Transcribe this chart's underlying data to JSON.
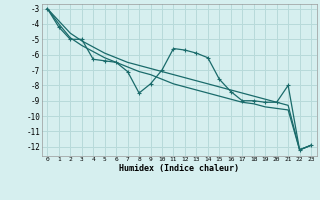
{
  "xlabel": "Humidex (Indice chaleur)",
  "ylabel": "",
  "background_color": "#d6efef",
  "grid_color": "#b8dada",
  "line_color": "#1a6b6b",
  "xlim": [
    -0.5,
    23.5
  ],
  "ylim": [
    -12.6,
    -2.7
  ],
  "xticks": [
    0,
    1,
    2,
    3,
    4,
    5,
    6,
    7,
    8,
    9,
    10,
    11,
    12,
    13,
    14,
    15,
    16,
    17,
    18,
    19,
    20,
    21,
    22,
    23
  ],
  "yticks": [
    -3,
    -4,
    -5,
    -6,
    -7,
    -8,
    -9,
    -10,
    -11,
    -12
  ],
  "series_main": [
    [
      0,
      -3.0
    ],
    [
      1,
      -4.2
    ],
    [
      2,
      -5.0
    ],
    [
      3,
      -5.0
    ],
    [
      4,
      -6.3
    ],
    [
      5,
      -6.4
    ],
    [
      6,
      -6.5
    ],
    [
      7,
      -7.1
    ],
    [
      8,
      -8.5
    ],
    [
      9,
      -7.9
    ],
    [
      10,
      -7.0
    ],
    [
      11,
      -5.6
    ],
    [
      12,
      -5.7
    ],
    [
      13,
      -5.9
    ],
    [
      14,
      -6.2
    ],
    [
      15,
      -7.6
    ],
    [
      16,
      -8.4
    ],
    [
      17,
      -9.0
    ],
    [
      18,
      -9.0
    ],
    [
      19,
      -9.1
    ],
    [
      20,
      -9.1
    ],
    [
      21,
      -8.0
    ],
    [
      22,
      -12.2
    ],
    [
      23,
      -11.9
    ]
  ],
  "series_upper": [
    [
      0,
      -3.0
    ],
    [
      1,
      -3.8
    ],
    [
      2,
      -4.6
    ],
    [
      3,
      -5.1
    ],
    [
      4,
      -5.5
    ],
    [
      5,
      -5.9
    ],
    [
      6,
      -6.2
    ],
    [
      7,
      -6.5
    ],
    [
      8,
      -6.7
    ],
    [
      9,
      -6.9
    ],
    [
      10,
      -7.1
    ],
    [
      11,
      -7.3
    ],
    [
      12,
      -7.5
    ],
    [
      13,
      -7.7
    ],
    [
      14,
      -7.9
    ],
    [
      15,
      -8.1
    ],
    [
      16,
      -8.3
    ],
    [
      17,
      -8.5
    ],
    [
      18,
      -8.7
    ],
    [
      19,
      -8.9
    ],
    [
      20,
      -9.1
    ],
    [
      21,
      -9.3
    ],
    [
      22,
      -12.2
    ],
    [
      23,
      -11.9
    ]
  ],
  "series_lower": [
    [
      0,
      -3.0
    ],
    [
      1,
      -4.0
    ],
    [
      2,
      -4.9
    ],
    [
      3,
      -5.4
    ],
    [
      4,
      -5.8
    ],
    [
      5,
      -6.2
    ],
    [
      6,
      -6.5
    ],
    [
      7,
      -6.8
    ],
    [
      8,
      -7.1
    ],
    [
      9,
      -7.3
    ],
    [
      10,
      -7.6
    ],
    [
      11,
      -7.9
    ],
    [
      12,
      -8.1
    ],
    [
      13,
      -8.3
    ],
    [
      14,
      -8.5
    ],
    [
      15,
      -8.7
    ],
    [
      16,
      -8.9
    ],
    [
      17,
      -9.1
    ],
    [
      18,
      -9.2
    ],
    [
      19,
      -9.4
    ],
    [
      20,
      -9.5
    ],
    [
      21,
      -9.6
    ],
    [
      22,
      -12.2
    ],
    [
      23,
      -11.9
    ]
  ]
}
